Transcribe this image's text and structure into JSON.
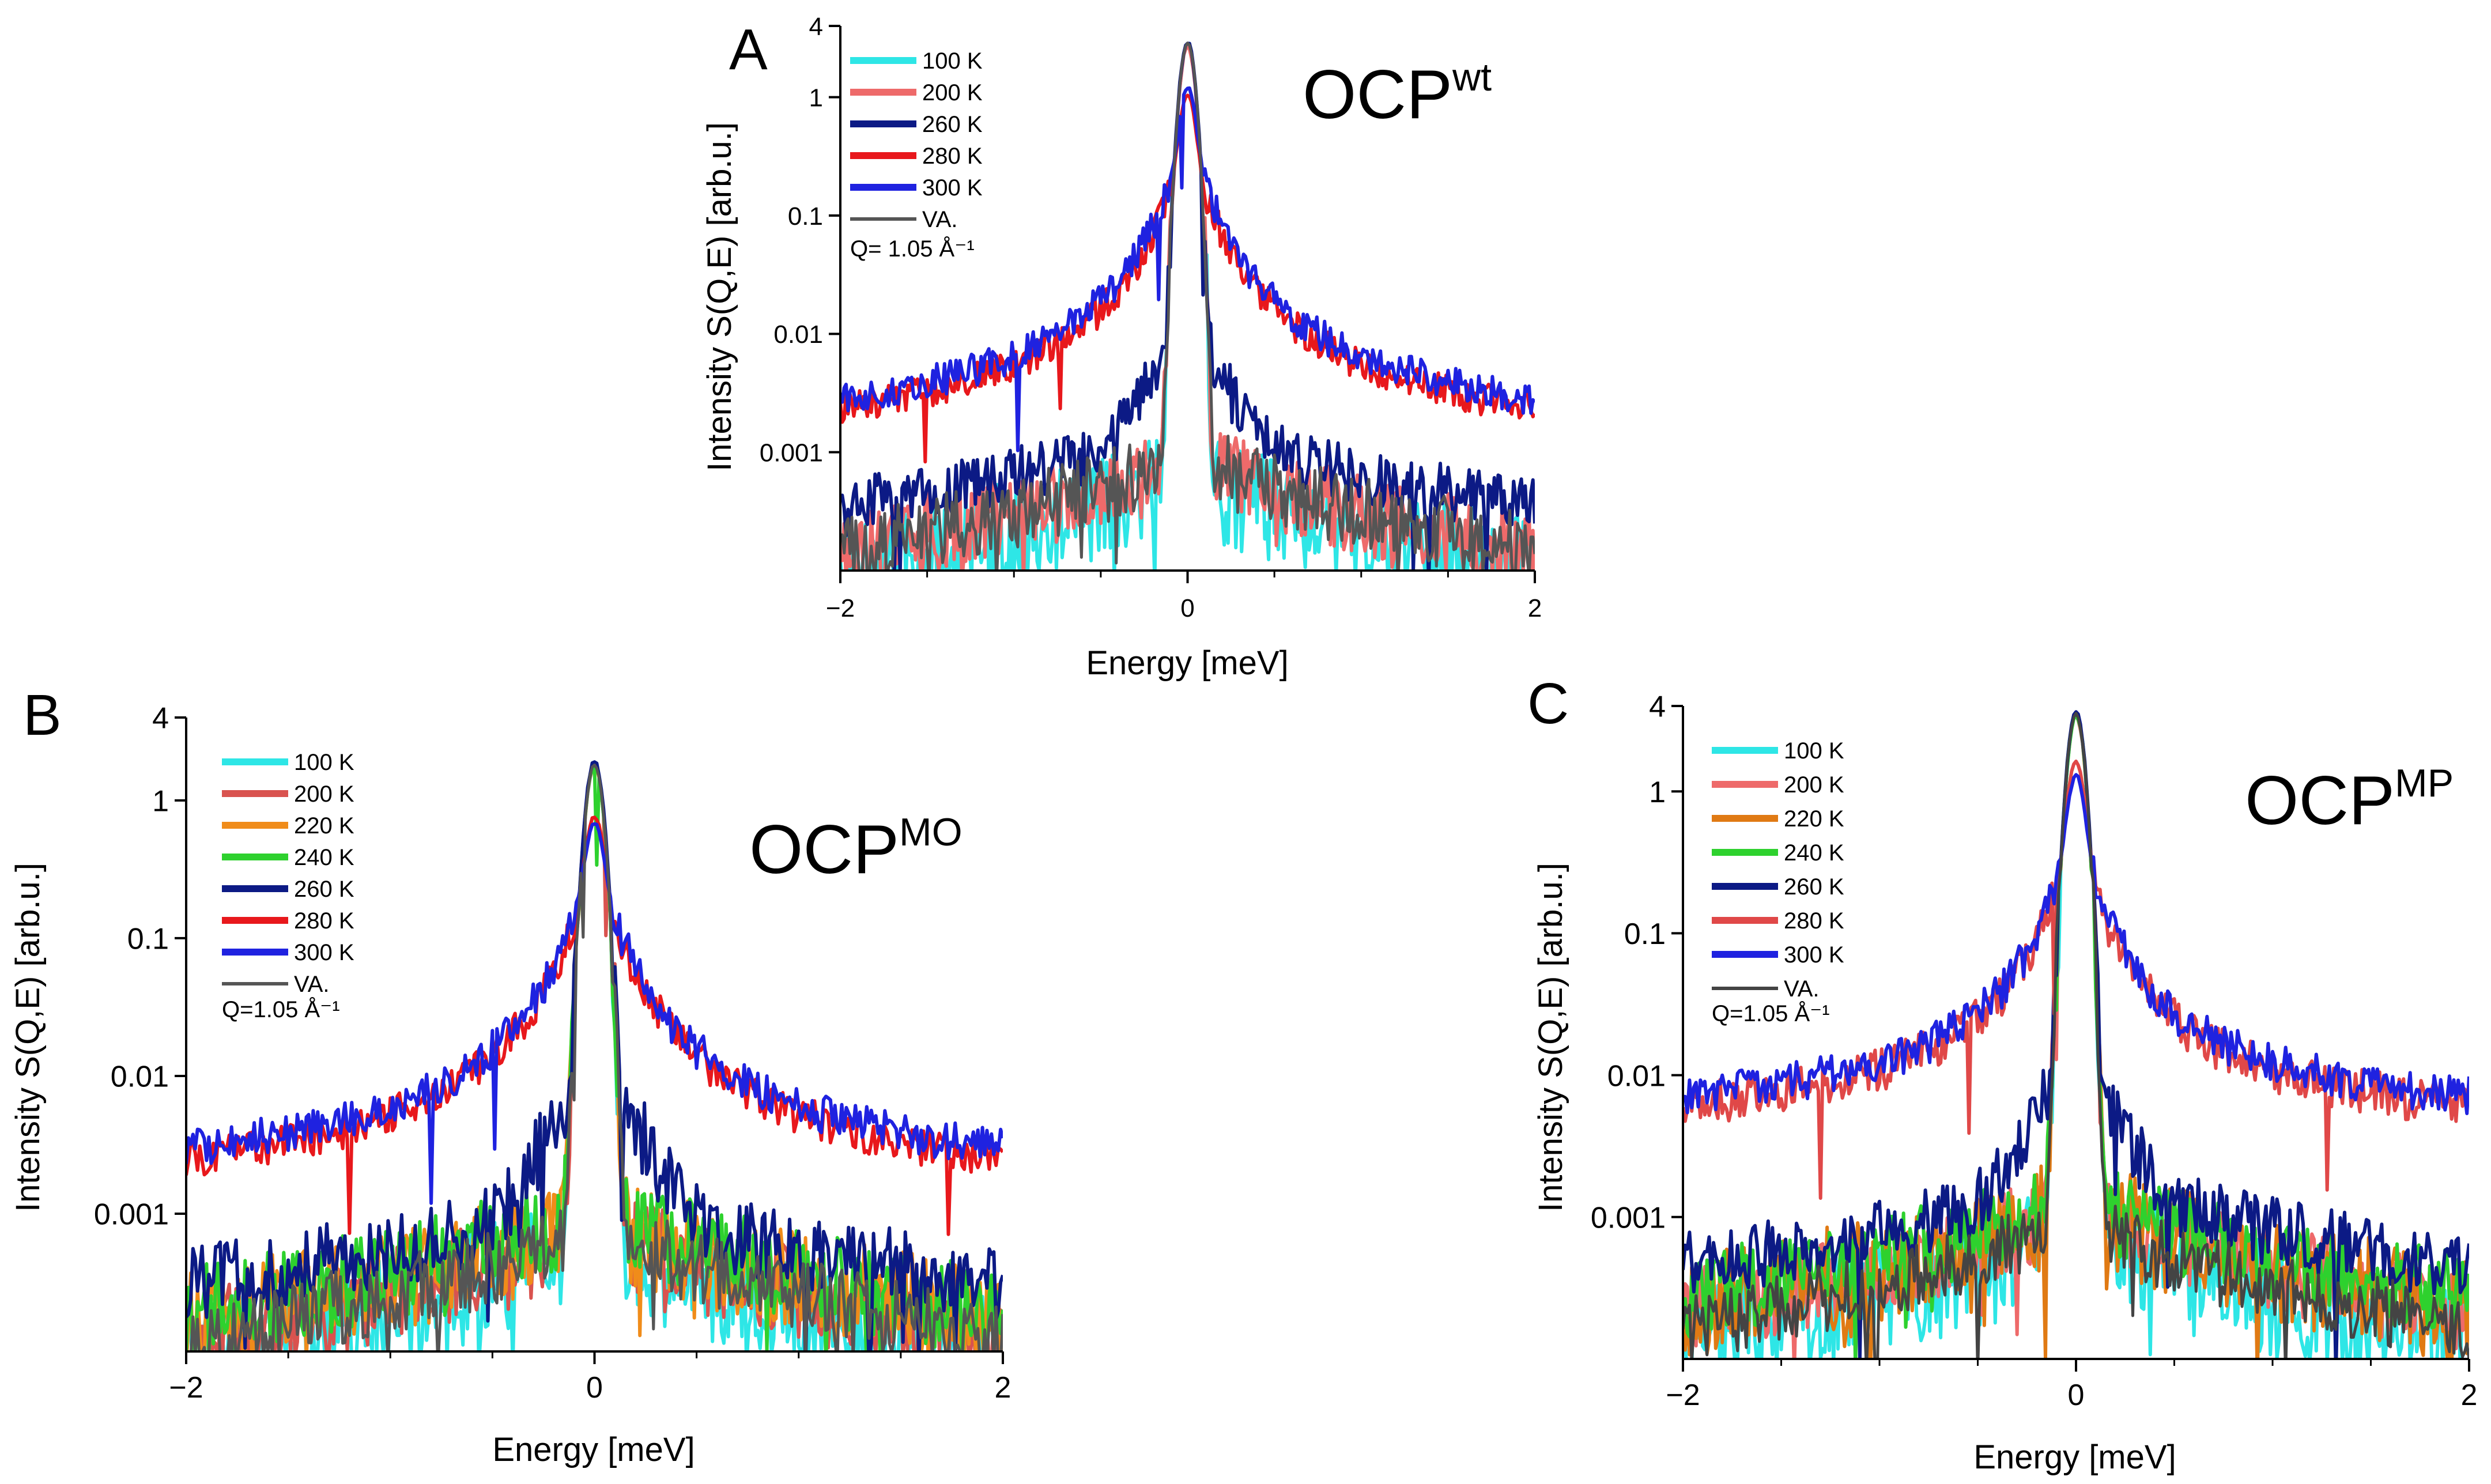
{
  "figure": {
    "panels": [
      "A",
      "B",
      "C"
    ]
  },
  "chart_data": [
    {
      "panel": "A",
      "type": "line",
      "title": "OCP",
      "title_superscript": "wt",
      "xlabel": "Energy [meV]",
      "ylabel": "Intensity S(Q,E) [arb.u.]",
      "xlim": [
        -2,
        2
      ],
      "ylim": [
        0.0001,
        4
      ],
      "yscale": "log",
      "x_ticks": [
        -2,
        0,
        2
      ],
      "x_tick_labels": [
        "−2",
        "0",
        "2"
      ],
      "y_ticks": [
        4,
        1,
        0.1,
        0.01,
        0.001
      ],
      "y_tick_labels": [
        "4",
        "1",
        "0.1",
        "0.01",
        "0.001"
      ],
      "annotation": "Q= 1.05 Å⁻¹",
      "legend_position": "top-left",
      "series": [
        {
          "name": "100 K",
          "color": "#2ee6e6",
          "peak": 2.8,
          "wing": 0.0004,
          "wing_decay": 1.2,
          "noise": 0.65
        },
        {
          "name": "200 K",
          "color": "#ee6a6a",
          "peak": 2.7,
          "wing": 0.0006,
          "wing_decay": 1.2,
          "noise": 0.5
        },
        {
          "name": "260 K",
          "color": "#0c1a85",
          "peak": 2.9,
          "wing": 0.0011,
          "wing_decay": 1.0,
          "noise": 0.35,
          "bump": 0.005
        },
        {
          "name": "280 K",
          "color": "#e8181c",
          "peak": 0.8,
          "wing": 0.0025,
          "wing_decay": 0.45,
          "noise": 0.2,
          "quasi": 0.25
        },
        {
          "name": "300 K",
          "color": "#1f22e0",
          "peak": 0.9,
          "wing": 0.0028,
          "wing_decay": 0.4,
          "noise": 0.2,
          "quasi": 0.3
        },
        {
          "name": "VA.",
          "color": "#555555",
          "peak": 2.9,
          "wing": 0.0006,
          "wing_decay": 1.2,
          "noise": 0.45
        }
      ]
    },
    {
      "panel": "B",
      "type": "line",
      "title": "OCP",
      "title_superscript": "MO",
      "xlabel": "Energy [meV]",
      "ylabel": "Intensity S(Q,E) [arb.u.]",
      "xlim": [
        -2,
        2
      ],
      "ylim": [
        0.0001,
        4
      ],
      "yscale": "log",
      "x_ticks": [
        -2,
        0,
        2
      ],
      "x_tick_labels": [
        "−2",
        "0",
        "2"
      ],
      "y_ticks": [
        4,
        1,
        0.1,
        0.01,
        0.001
      ],
      "y_tick_labels": [
        "4",
        "1",
        "0.1",
        "0.01",
        "0.001"
      ],
      "annotation": "Q=1.05 Å⁻¹",
      "legend_position": "top-left",
      "series": [
        {
          "name": "100 K",
          "color": "#2ee6e6",
          "peak": 1.8,
          "wing": 0.0004,
          "wing_decay": 1.2,
          "noise": 0.6
        },
        {
          "name": "200 K",
          "color": "#d9534f",
          "peak": 1.8,
          "wing": 0.0005,
          "wing_decay": 1.2,
          "noise": 0.5
        },
        {
          "name": "220 K",
          "color": "#f08c1a",
          "peak": 1.8,
          "wing": 0.0006,
          "wing_decay": 1.1,
          "noise": 0.55
        },
        {
          "name": "240 K",
          "color": "#2ed12e",
          "peak": 1.8,
          "wing": 0.0007,
          "wing_decay": 1.1,
          "noise": 0.5
        },
        {
          "name": "260 K",
          "color": "#0c1a85",
          "peak": 1.9,
          "wing": 0.0009,
          "wing_decay": 0.9,
          "noise": 0.4,
          "bump": 0.006
        },
        {
          "name": "280 K",
          "color": "#e8181c",
          "peak": 0.55,
          "wing": 0.003,
          "wing_decay": 0.45,
          "noise": 0.2,
          "quasi": 0.2
        },
        {
          "name": "300 K",
          "color": "#1f22e0",
          "peak": 0.45,
          "wing": 0.0035,
          "wing_decay": 0.4,
          "noise": 0.2,
          "quasi": 0.22
        },
        {
          "name": "VA.",
          "color": "#555555",
          "peak": 1.8,
          "wing": 0.0005,
          "wing_decay": 1.2,
          "noise": 0.4
        }
      ]
    },
    {
      "panel": "C",
      "type": "line",
      "title": "OCP",
      "title_superscript": "MP",
      "xlabel": "Energy [meV]",
      "ylabel": "Intensity S(Q,E) [arb.u.]",
      "xlim": [
        -2,
        2
      ],
      "ylim": [
        0.0001,
        4
      ],
      "yscale": "log",
      "x_ticks": [
        -2,
        0,
        2
      ],
      "x_tick_labels": [
        "−2",
        "0",
        "2"
      ],
      "y_ticks": [
        4,
        1,
        0.1,
        0.01,
        0.001
      ],
      "y_tick_labels": [
        "4",
        "1",
        "0.1",
        "0.01",
        "0.001"
      ],
      "annotation": "Q=1.05 Å⁻¹",
      "legend_position": "top-left",
      "series": [
        {
          "name": "100 K",
          "color": "#2ee6e6",
          "peak": 3.5,
          "wing": 0.0005,
          "wing_decay": 1.1,
          "noise": 0.6
        },
        {
          "name": "200 K",
          "color": "#ee6a6a",
          "peak": 3.4,
          "wing": 0.0008,
          "wing_decay": 1.1,
          "noise": 0.45
        },
        {
          "name": "220 K",
          "color": "#e07a14",
          "peak": 3.4,
          "wing": 0.0008,
          "wing_decay": 1.1,
          "noise": 0.55
        },
        {
          "name": "240 K",
          "color": "#2ed12e",
          "peak": 3.4,
          "wing": 0.0009,
          "wing_decay": 1.0,
          "noise": 0.45
        },
        {
          "name": "260 K",
          "color": "#0c1a85",
          "peak": 3.6,
          "wing": 0.0013,
          "wing_decay": 0.9,
          "noise": 0.35,
          "bump": 0.007
        },
        {
          "name": "280 K",
          "color": "#e04848",
          "peak": 1.3,
          "wing": 0.008,
          "wing_decay": 0.4,
          "noise": 0.22,
          "quasi": 0.3
        },
        {
          "name": "300 K",
          "color": "#1f22e0",
          "peak": 0.95,
          "wing": 0.009,
          "wing_decay": 0.35,
          "noise": 0.2,
          "quasi": 0.33
        },
        {
          "name": "VA.",
          "color": "#444444",
          "peak": 3.5,
          "wing": 0.0006,
          "wing_decay": 1.1,
          "noise": 0.35
        }
      ]
    }
  ]
}
